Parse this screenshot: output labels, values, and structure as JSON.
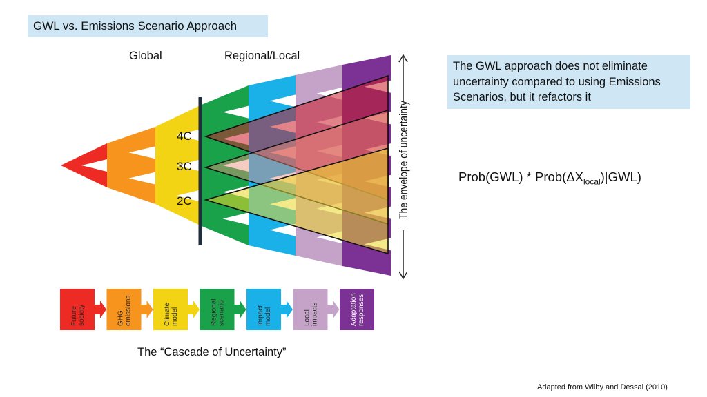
{
  "title": "GWL vs. Emissions Scenario Approach",
  "header_labels": {
    "global": "Global",
    "regional_local": "Regional/Local"
  },
  "gwl_levels": [
    "4C",
    "3C",
    "2C"
  ],
  "envelope_label": "The envelope of uncertainty",
  "callout": "The GWL approach does not eliminate uncertainty compared  to using Emissions Scenarios, but it refactors it",
  "formula": {
    "prefix": "Prob(GWL) * Prob(ΔX",
    "subscript": "local",
    "suffix": ")|GWL)"
  },
  "cascade": {
    "caption": "The “Cascade of Uncertainty”",
    "steps": [
      {
        "label": "Future society",
        "color": "#ee2a24"
      },
      {
        "label": "GHG emissions",
        "color": "#f7941d"
      },
      {
        "label": "Climate model",
        "color": "#f2d414"
      },
      {
        "label": "Regional scenario",
        "color": "#19a24a"
      },
      {
        "label": "Impact model",
        "color": "#1ab0e8"
      },
      {
        "label": "Local impacts",
        "color": "#c5a3c9"
      },
      {
        "label": "Adaptation responses",
        "color": "#7b3294"
      }
    ]
  },
  "credit": "Adapted from Wilby and Dessai (2010)",
  "colors": {
    "title_bg": "#cfe6f4",
    "callout_bg": "#cfe6f4"
  }
}
